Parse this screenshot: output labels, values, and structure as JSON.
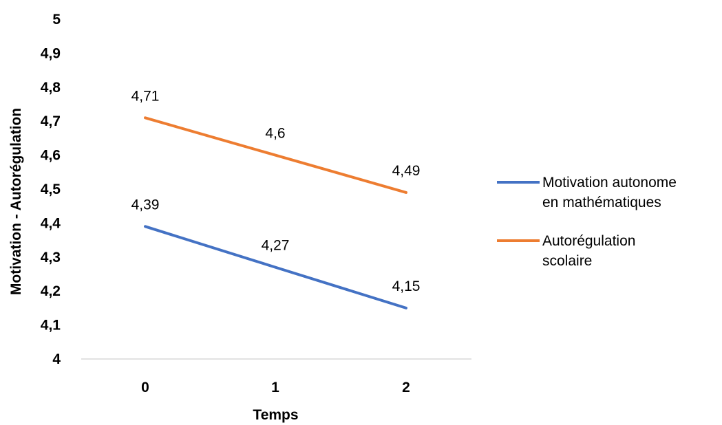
{
  "chart_data": {
    "type": "line",
    "title": "",
    "xlabel": "Temps",
    "ylabel": "Motivation - Autorégulation",
    "categories": [
      "0",
      "1",
      "2"
    ],
    "ylim": [
      4,
      5
    ],
    "y_ticks": [
      "4",
      "4,1",
      "4,2",
      "4,3",
      "4,4",
      "4,5",
      "4,6",
      "4,7",
      "4,8",
      "4,9",
      "5"
    ],
    "grid": false,
    "legend_position": "right",
    "series": [
      {
        "name": "Motivation autonome en mathématiques",
        "legend_lines": [
          "Motivation autonome",
          "en mathématiques"
        ],
        "values": [
          4.39,
          4.27,
          4.15
        ],
        "labels": [
          "4,39",
          "4,27",
          "4,15"
        ],
        "color": "#4472C4"
      },
      {
        "name": "Autorégulation scolaire",
        "legend_lines": [
          "Autorégulation",
          "scolaire"
        ],
        "values": [
          4.71,
          4.6,
          4.49
        ],
        "labels": [
          "4,71",
          "4,6",
          "4,49"
        ],
        "color": "#ED7D31"
      }
    ]
  }
}
